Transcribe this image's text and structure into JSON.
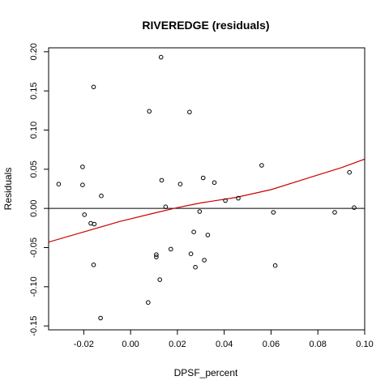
{
  "chart_data": {
    "type": "scatter",
    "title": "RIVEREDGE (residuals)",
    "xlabel": "DPSF_percent",
    "ylabel": "Residuals",
    "xlim": [
      -0.035,
      0.1
    ],
    "ylim": [
      -0.155,
      0.205
    ],
    "x_ticks": [
      -0.02,
      0.0,
      0.02,
      0.04,
      0.06,
      0.08,
      0.1
    ],
    "x_tick_labels": [
      "-0.02",
      "0.00",
      "0.02",
      "0.04",
      "0.06",
      "0.08",
      "0.10"
    ],
    "y_ticks": [
      -0.15,
      -0.1,
      -0.05,
      0.0,
      0.05,
      0.1,
      0.15,
      0.2
    ],
    "y_tick_labels": [
      "-0.15",
      "-0.10",
      "-0.05",
      "0.00",
      "0.05",
      "0.10",
      "0.15",
      "0.20"
    ],
    "reference_line_y": 0,
    "grid": false,
    "colors": {
      "points": "#000000",
      "smooth": "#cc0000",
      "reference": "#000000"
    },
    "points": [
      {
        "x": -0.0307,
        "y": 0.031
      },
      {
        "x": -0.0205,
        "y": 0.053
      },
      {
        "x": -0.0205,
        "y": 0.03
      },
      {
        "x": -0.0197,
        "y": -0.008
      },
      {
        "x": -0.017,
        "y": -0.019
      },
      {
        "x": -0.0155,
        "y": -0.02
      },
      {
        "x": -0.0158,
        "y": 0.155
      },
      {
        "x": -0.0158,
        "y": -0.072
      },
      {
        "x": -0.0125,
        "y": 0.016
      },
      {
        "x": -0.0128,
        "y": -0.14
      },
      {
        "x": 0.008,
        "y": 0.124
      },
      {
        "x": 0.0075,
        "y": -0.12
      },
      {
        "x": 0.011,
        "y": -0.059
      },
      {
        "x": 0.011,
        "y": -0.062
      },
      {
        "x": 0.013,
        "y": 0.193
      },
      {
        "x": 0.0133,
        "y": 0.036
      },
      {
        "x": 0.0125,
        "y": -0.091
      },
      {
        "x": 0.015,
        "y": 0.002
      },
      {
        "x": 0.0172,
        "y": -0.052
      },
      {
        "x": 0.0212,
        "y": 0.031
      },
      {
        "x": 0.0252,
        "y": 0.123
      },
      {
        "x": 0.0258,
        "y": -0.058
      },
      {
        "x": 0.027,
        "y": -0.03
      },
      {
        "x": 0.0277,
        "y": -0.075
      },
      {
        "x": 0.0295,
        "y": -0.004
      },
      {
        "x": 0.031,
        "y": 0.039
      },
      {
        "x": 0.0315,
        "y": -0.066
      },
      {
        "x": 0.033,
        "y": -0.034
      },
      {
        "x": 0.0358,
        "y": 0.033
      },
      {
        "x": 0.0405,
        "y": 0.01
      },
      {
        "x": 0.046,
        "y": 0.013
      },
      {
        "x": 0.056,
        "y": 0.055
      },
      {
        "x": 0.061,
        "y": -0.005
      },
      {
        "x": 0.0618,
        "y": -0.073
      },
      {
        "x": 0.0872,
        "y": -0.005
      },
      {
        "x": 0.0935,
        "y": 0.046
      },
      {
        "x": 0.0955,
        "y": 0.001
      }
    ],
    "smooth_line": [
      {
        "x": -0.035,
        "y": -0.043
      },
      {
        "x": -0.02,
        "y": -0.03
      },
      {
        "x": -0.005,
        "y": -0.017
      },
      {
        "x": 0.01,
        "y": -0.006
      },
      {
        "x": 0.02,
        "y": 0.001
      },
      {
        "x": 0.03,
        "y": 0.007
      },
      {
        "x": 0.045,
        "y": 0.014
      },
      {
        "x": 0.06,
        "y": 0.024
      },
      {
        "x": 0.075,
        "y": 0.038
      },
      {
        "x": 0.09,
        "y": 0.052
      },
      {
        "x": 0.1,
        "y": 0.063
      }
    ]
  }
}
